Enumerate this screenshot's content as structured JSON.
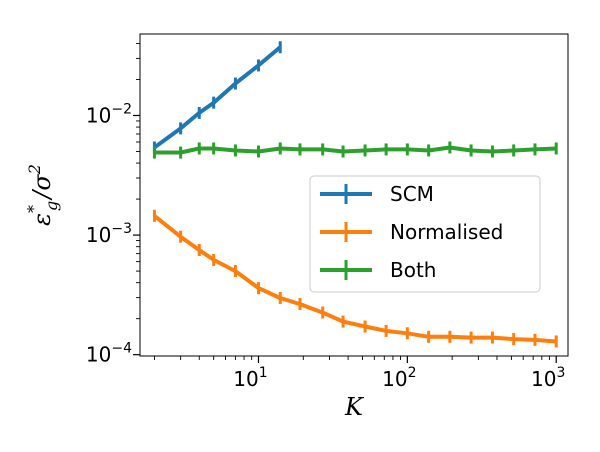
{
  "chart_data": {
    "type": "line",
    "xscale": "log",
    "yscale": "log",
    "xlim": [
      1.6,
      1200
    ],
    "ylim": [
      9.75e-05,
      0.048
    ],
    "grid": false,
    "xlabel": "K",
    "ylabel": "ε*g/σ²",
    "xticks": [
      {
        "value": 10,
        "base": "10",
        "exp": "1"
      },
      {
        "value": 100,
        "base": "10",
        "exp": "2"
      },
      {
        "value": 1000,
        "base": "10",
        "exp": "3"
      }
    ],
    "yticks": [
      {
        "value": 0.0001,
        "base": "10",
        "exp": "−4"
      },
      {
        "value": 0.001,
        "base": "10",
        "exp": "−3"
      },
      {
        "value": 0.01,
        "base": "10",
        "exp": "−2"
      }
    ],
    "legend_position": "center-right",
    "series": [
      {
        "name": "SCM",
        "color": "#1f77b4",
        "x": [
          2,
          3,
          4,
          5,
          7,
          10,
          14
        ],
        "y": [
          0.0054,
          0.0078,
          0.0105,
          0.0128,
          0.0185,
          0.0262,
          0.0372
        ]
      },
      {
        "name": "Normalised",
        "color": "#ff7f0e",
        "x": [
          2,
          3,
          4,
          5,
          7,
          10,
          14,
          19,
          27,
          37,
          52,
          72,
          100,
          139,
          193,
          268,
          373,
          518,
          720,
          1000
        ],
        "y": [
          0.00145,
          0.00097,
          0.00075,
          0.00062,
          0.0005,
          0.00036,
          0.000298,
          0.000265,
          0.000225,
          0.000189,
          0.000172,
          0.000158,
          0.000151,
          0.000141,
          0.000141,
          0.000139,
          0.000139,
          0.000135,
          0.000133,
          0.000129
        ]
      },
      {
        "name": "Both",
        "color": "#2ca02c",
        "x": [
          2,
          3,
          4,
          5,
          7,
          10,
          14,
          19,
          27,
          37,
          52,
          72,
          100,
          139,
          193,
          268,
          373,
          518,
          720,
          1000
        ],
        "y": [
          0.0049,
          0.0049,
          0.0053,
          0.0053,
          0.0051,
          0.005,
          0.0053,
          0.0052,
          0.0052,
          0.005,
          0.0051,
          0.0052,
          0.0052,
          0.0051,
          0.0054,
          0.0051,
          0.005,
          0.0051,
          0.0052,
          0.0053
        ]
      }
    ]
  }
}
